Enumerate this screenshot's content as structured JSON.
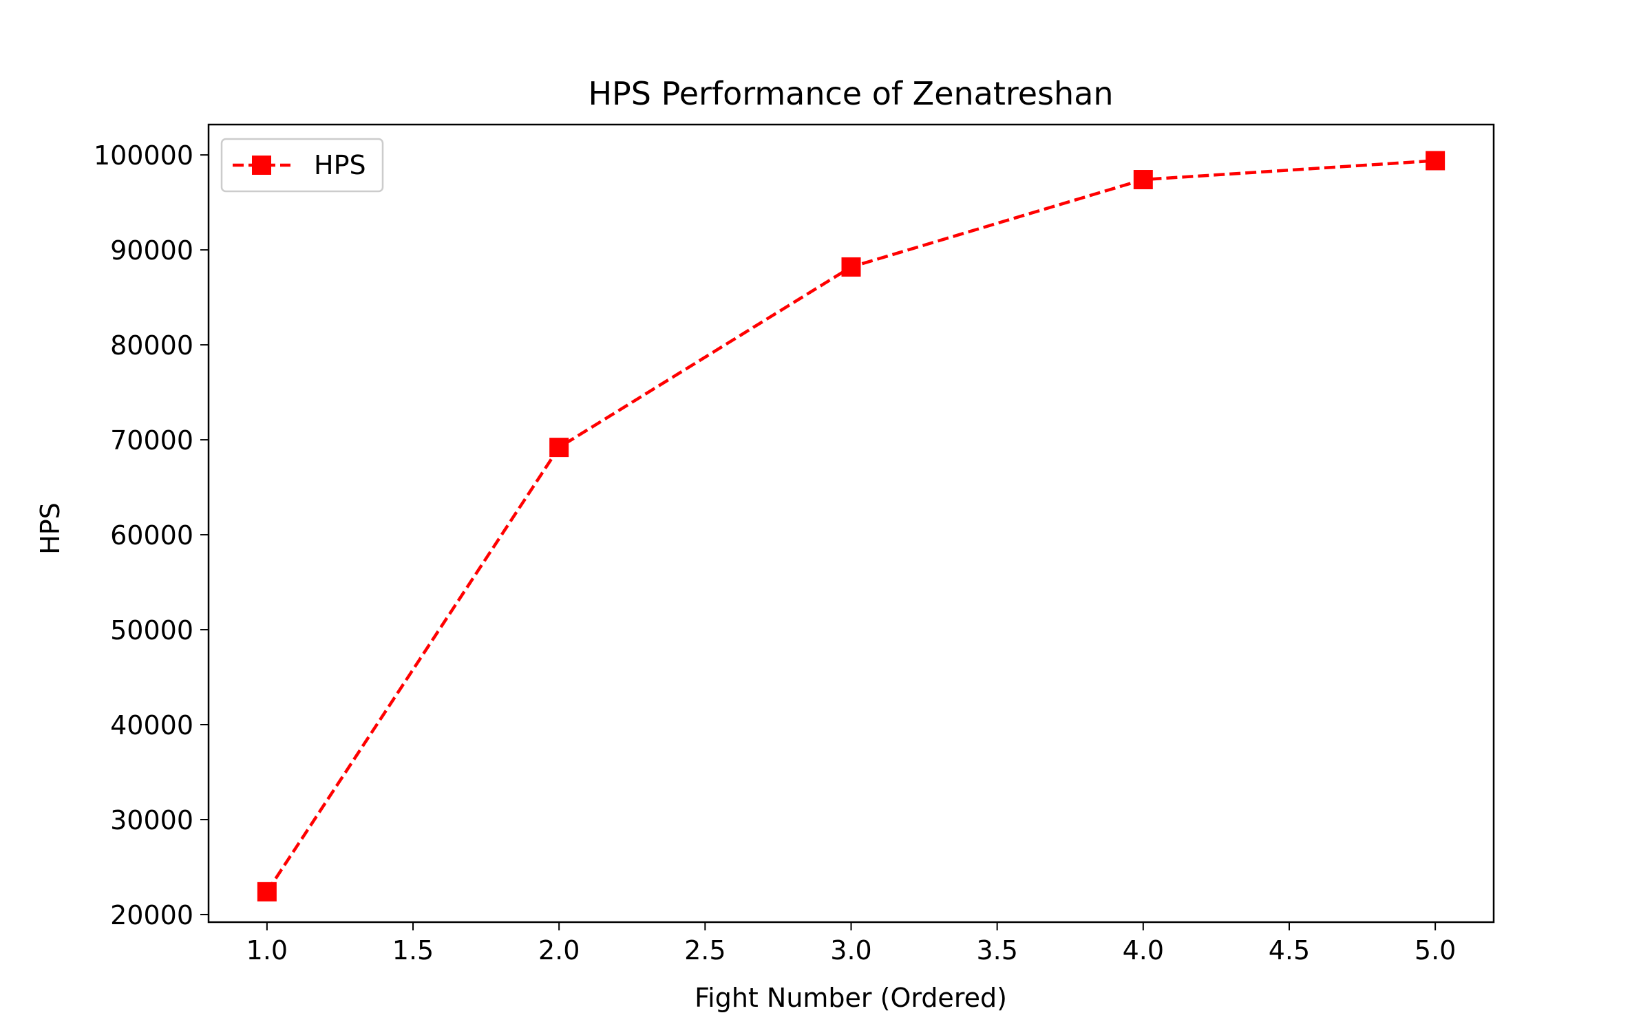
{
  "chart_data": {
    "type": "line",
    "title": "HPS Performance of Zenatreshan",
    "xlabel": "Fight Number (Ordered)",
    "ylabel": "HPS",
    "xlim": [
      0.8,
      5.2
    ],
    "ylim": [
      19200,
      103200
    ],
    "x_ticks": [
      1.0,
      1.5,
      2.0,
      2.5,
      3.0,
      3.5,
      4.0,
      4.5,
      5.0
    ],
    "x_tick_labels": [
      "1.0",
      "1.5",
      "2.0",
      "2.5",
      "3.0",
      "3.5",
      "4.0",
      "4.5",
      "5.0"
    ],
    "y_ticks": [
      20000,
      30000,
      40000,
      50000,
      60000,
      70000,
      80000,
      90000,
      100000
    ],
    "y_tick_labels": [
      "20000",
      "30000",
      "40000",
      "50000",
      "60000",
      "70000",
      "80000",
      "90000",
      "100000"
    ],
    "grid": false,
    "legend_position": "upper-left",
    "series": [
      {
        "name": "HPS",
        "color": "#ff0000",
        "line_style": "dashed",
        "marker": "square",
        "x": [
          1,
          2,
          3,
          4,
          5
        ],
        "y": [
          22400,
          69200,
          88200,
          97400,
          99400
        ]
      }
    ]
  }
}
